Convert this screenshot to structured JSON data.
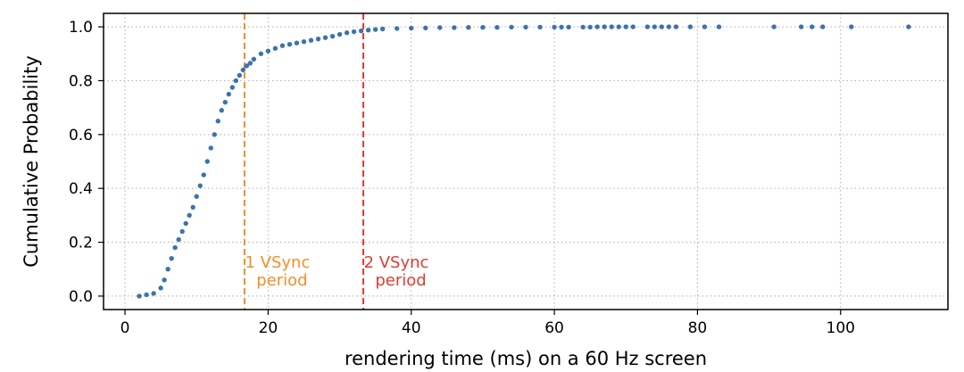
{
  "chart_data": {
    "type": "scatter",
    "title": "",
    "xlabel": "rendering time (ms) on a 60 Hz screen",
    "ylabel": "Cumulative Probability",
    "xlim": [
      -3,
      115
    ],
    "ylim": [
      -0.05,
      1.05
    ],
    "xticks": [
      0,
      20,
      40,
      60,
      80,
      100
    ],
    "yticks": [
      0.0,
      0.2,
      0.4,
      0.6,
      0.8,
      1.0
    ],
    "xtick_labels": [
      "0",
      "20",
      "40",
      "60",
      "80",
      "100"
    ],
    "ytick_labels": [
      "0.0",
      "0.2",
      "0.4",
      "0.6",
      "0.8",
      "1.0"
    ],
    "grid": true,
    "series": [
      {
        "color": "#3b73b0",
        "x": [
          2.0,
          3.0,
          4.0,
          5.0,
          5.5,
          6.0,
          6.5,
          7.0,
          7.5,
          8.0,
          8.5,
          9.0,
          9.5,
          10.0,
          10.5,
          11.0,
          11.5,
          12.0,
          12.5,
          13.0,
          13.5,
          14.0,
          14.5,
          15.0,
          15.5,
          16.0,
          16.5,
          17.0,
          17.5,
          18.0,
          19.0,
          20.0,
          21.0,
          22.0,
          23.0,
          24.0,
          25.0,
          26.0,
          27.0,
          28.0,
          29.0,
          30.0,
          31.0,
          32.0,
          33.0,
          34.0,
          35.0,
          36.0,
          38.0,
          40.0,
          42.0,
          44.0,
          46.0,
          48.0,
          50.0,
          52.0,
          54.0,
          56.0,
          58.0,
          60.0,
          61.0,
          62.0,
          64.0,
          65.0,
          66.0,
          67.0,
          68.0,
          69.0,
          70.0,
          71.0,
          73.0,
          74.0,
          75.0,
          76.0,
          77.0,
          79.0,
          81.0,
          83.0,
          90.7,
          94.5,
          96.0,
          97.5,
          101.5,
          109.5
        ],
        "y": [
          0.0,
          0.005,
          0.01,
          0.03,
          0.06,
          0.1,
          0.14,
          0.18,
          0.21,
          0.24,
          0.27,
          0.3,
          0.33,
          0.37,
          0.41,
          0.45,
          0.5,
          0.55,
          0.6,
          0.65,
          0.69,
          0.72,
          0.75,
          0.775,
          0.8,
          0.82,
          0.84,
          0.855,
          0.865,
          0.88,
          0.9,
          0.91,
          0.92,
          0.93,
          0.935,
          0.94,
          0.945,
          0.95,
          0.955,
          0.96,
          0.965,
          0.972,
          0.978,
          0.982,
          0.985,
          0.988,
          0.99,
          0.992,
          0.994,
          0.995,
          0.996,
          0.997,
          0.997,
          0.998,
          0.998,
          0.998,
          0.999,
          0.999,
          0.999,
          0.999,
          0.999,
          0.999,
          0.999,
          0.999,
          1.0,
          1.0,
          1.0,
          1.0,
          1.0,
          1.0,
          1.0,
          1.0,
          1.0,
          1.0,
          1.0,
          1.0,
          1.0,
          1.0,
          1.0,
          1.0,
          1.0,
          1.0,
          1.0,
          1.0
        ]
      }
    ],
    "annotations": [
      {
        "x": 16.7,
        "color": "#f28e2b",
        "style": "dashed",
        "label_line1": "1 VSync",
        "label_line2": "period"
      },
      {
        "x": 33.3,
        "color": "#e03c31",
        "style": "dashed",
        "label_line1": "2 VSync",
        "label_line2": "period"
      }
    ]
  }
}
